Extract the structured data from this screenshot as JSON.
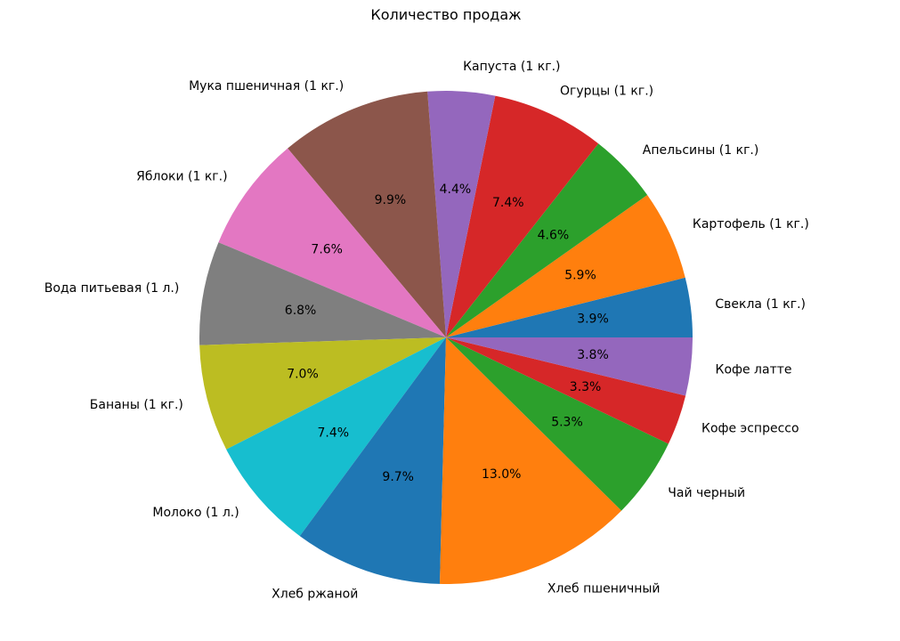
{
  "chart_data": {
    "type": "pie",
    "title": "Количество продаж",
    "start_angle_deg": 0,
    "direction": "counterclockwise",
    "slices": [
      {
        "label": "Свекла (1 кг.)",
        "pct_label": "3.9%",
        "value": 3.9,
        "color": "#1f77b4"
      },
      {
        "label": "Картофель (1 кг.)",
        "pct_label": "5.9%",
        "value": 5.9,
        "color": "#ff7f0e"
      },
      {
        "label": "Апельсины (1 кг.)",
        "pct_label": "4.6%",
        "value": 4.6,
        "color": "#2ca02c"
      },
      {
        "label": "Огурцы (1 кг.)",
        "pct_label": "7.4%",
        "value": 7.4,
        "color": "#d62728"
      },
      {
        "label": "Капуста (1 кг.)",
        "pct_label": "4.4%",
        "value": 4.4,
        "color": "#9467bd"
      },
      {
        "label": "Мука пшеничная (1 кг.)",
        "pct_label": "9.9%",
        "value": 9.9,
        "color": "#8c564b"
      },
      {
        "label": "Яблоки (1 кг.)",
        "pct_label": "7.6%",
        "value": 7.6,
        "color": "#e377c2"
      },
      {
        "label": "Вода питьевая (1 л.)",
        "pct_label": "6.8%",
        "value": 6.8,
        "color": "#7f7f7f"
      },
      {
        "label": "Бананы (1 кг.)",
        "pct_label": "7.0%",
        "value": 7.0,
        "color": "#bcbd22"
      },
      {
        "label": "Молоко (1 л.)",
        "pct_label": "7.4%",
        "value": 7.4,
        "color": "#17becf"
      },
      {
        "label": "Хлеб ржаной",
        "pct_label": "9.7%",
        "value": 9.7,
        "color": "#1f77b4"
      },
      {
        "label": "Хлеб пшеничный",
        "pct_label": "13.0%",
        "value": 13.0,
        "color": "#ff7f0e"
      },
      {
        "label": "Чай черный",
        "pct_label": "5.3%",
        "value": 5.3,
        "color": "#2ca02c"
      },
      {
        "label": "Кофе эспрессо",
        "pct_label": "3.3%",
        "value": 3.3,
        "color": "#d62728"
      },
      {
        "label": "Кофе латте",
        "pct_label": "3.8%",
        "value": 3.8,
        "color": "#9467bd"
      }
    ]
  }
}
